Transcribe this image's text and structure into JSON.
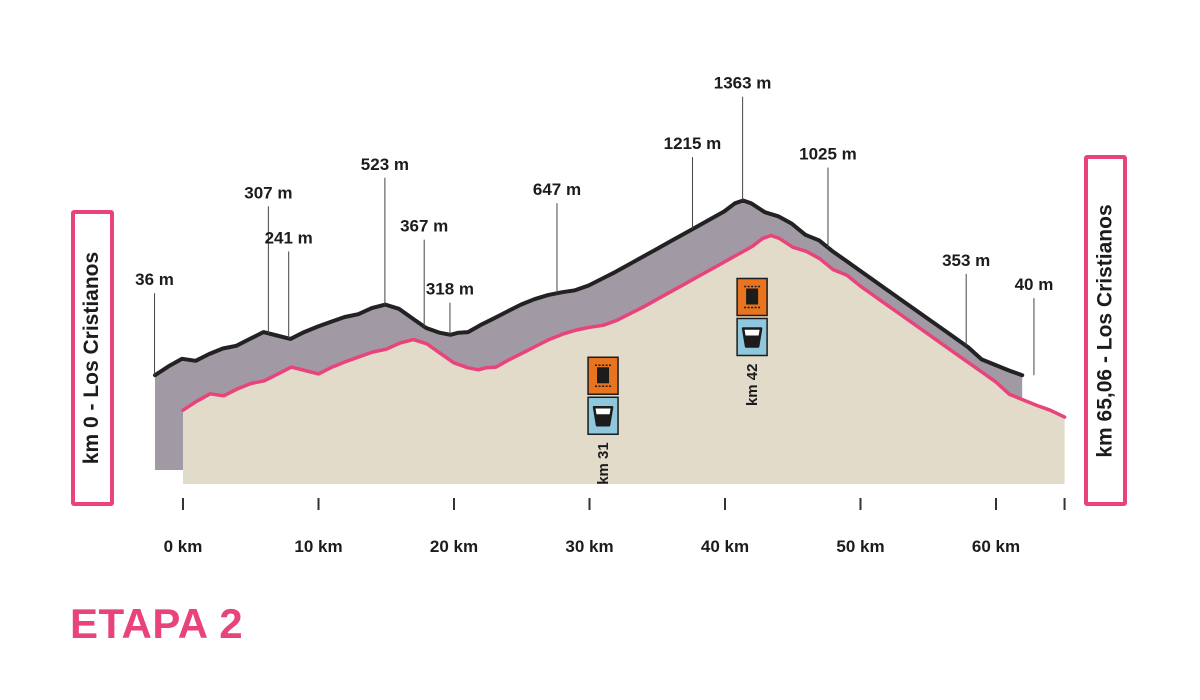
{
  "title": "ETAPA 2",
  "start_label": "km 0 - Los Cristianos",
  "end_label": "km 65,06 - Los Cristianos",
  "colors": {
    "accent": "#e8437b",
    "upper_fill": "#a19aa5",
    "upper_stroke": "#222222",
    "lower_fill": "#e3dbca",
    "lower_stroke": "#e8437b",
    "food_icon": "#e8741f",
    "water_icon": "#8fc8dc"
  },
  "chart_data": {
    "type": "area",
    "x_unit": "km",
    "x_range": [
      0,
      65.06
    ],
    "x_ticks": [
      {
        "value": 0,
        "label": "0 km"
      },
      {
        "value": 10,
        "label": "10 km"
      },
      {
        "value": 20,
        "label": "20 km"
      },
      {
        "value": 30,
        "label": "30 km"
      },
      {
        "value": 40,
        "label": "40 km"
      },
      {
        "value": 50,
        "label": "50 km"
      },
      {
        "value": 60,
        "label": "60 km"
      }
    ],
    "gridlines_x": [
      10,
      20,
      30,
      40,
      50,
      60
    ],
    "series": [
      {
        "points": [
          [
            0,
            70
          ],
          [
            1,
            200
          ],
          [
            2,
            310
          ],
          [
            3,
            280
          ],
          [
            4,
            380
          ],
          [
            5,
            460
          ],
          [
            6,
            500
          ],
          [
            7,
            600
          ],
          [
            8,
            700
          ],
          [
            9,
            650
          ],
          [
            10,
            600
          ],
          [
            11,
            700
          ],
          [
            12,
            780
          ],
          [
            13,
            850
          ],
          [
            14,
            920
          ],
          [
            15,
            960
          ],
          [
            16,
            1050
          ],
          [
            17,
            1100
          ],
          [
            18,
            1040
          ],
          [
            19,
            900
          ],
          [
            20,
            760
          ],
          [
            21,
            690
          ],
          [
            21.8,
            660
          ],
          [
            22.4,
            690
          ],
          [
            23.1,
            700
          ],
          [
            24,
            800
          ],
          [
            25,
            900
          ],
          [
            26,
            1000
          ],
          [
            27,
            1100
          ],
          [
            28,
            1180
          ],
          [
            29,
            1240
          ],
          [
            30,
            1280
          ],
          [
            31,
            1310
          ],
          [
            32,
            1380
          ],
          [
            33,
            1480
          ],
          [
            34,
            1580
          ],
          [
            35,
            1690
          ],
          [
            36,
            1800
          ],
          [
            37,
            1910
          ],
          [
            38,
            2020
          ],
          [
            39,
            2130
          ],
          [
            40,
            2240
          ],
          [
            41,
            2350
          ],
          [
            42,
            2460
          ],
          [
            42.8,
            2580
          ],
          [
            43.4,
            2620
          ],
          [
            44,
            2580
          ],
          [
            45,
            2450
          ],
          [
            46,
            2390
          ],
          [
            47,
            2280
          ],
          [
            48,
            2120
          ],
          [
            49,
            2040
          ],
          [
            50,
            1880
          ],
          [
            51,
            1740
          ],
          [
            52,
            1600
          ],
          [
            53,
            1460
          ],
          [
            54,
            1320
          ],
          [
            55,
            1180
          ],
          [
            56,
            1040
          ],
          [
            57,
            900
          ],
          [
            58,
            760
          ],
          [
            59,
            620
          ],
          [
            60,
            480
          ],
          [
            61,
            300
          ],
          [
            62,
            220
          ],
          [
            63,
            140
          ],
          [
            64,
            70
          ],
          [
            65.06,
            -30
          ]
        ]
      }
    ],
    "elevation_labels": [
      {
        "km": -2.1,
        "label": "36 m"
      },
      {
        "km": 6.3,
        "label": "307 m"
      },
      {
        "km": 7.8,
        "label": "241 m"
      },
      {
        "km": 14.9,
        "label": "523 m"
      },
      {
        "km": 17.8,
        "label": "367 m"
      },
      {
        "km": 19.7,
        "label": "318 m"
      },
      {
        "km": 27.6,
        "label": "647 m"
      },
      {
        "km": 37.6,
        "label": "1215 m"
      },
      {
        "km": 41.3,
        "label": "1363 m"
      },
      {
        "km": 47.6,
        "label": "1025 m"
      },
      {
        "km": 57.8,
        "label": "353 m"
      },
      {
        "km": 62.8,
        "label": "40 m"
      }
    ],
    "aid_stations": [
      {
        "km": 31,
        "label": "km 31",
        "icons": [
          "food-icon",
          "water-icon"
        ]
      },
      {
        "km": 42,
        "label": "km 42",
        "icons": [
          "food-icon",
          "water-icon"
        ]
      }
    ]
  }
}
